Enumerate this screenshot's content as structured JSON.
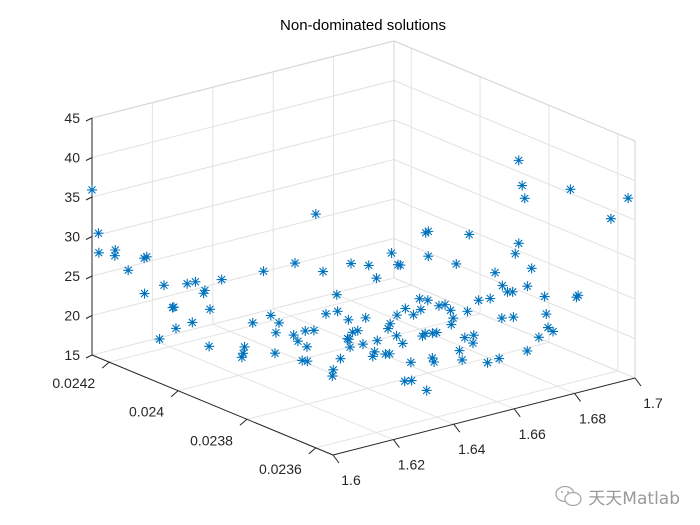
{
  "chart_data": {
    "type": "scatter3d",
    "title": "Non-dominated solutions",
    "xlabel": "",
    "ylabel": "",
    "zlabel": "",
    "xlim": [
      1.6,
      1.7
    ],
    "ylim": [
      0.02355,
      0.02425
    ],
    "zlim": [
      15,
      45
    ],
    "xticks": [
      "1.6",
      "1.62",
      "1.64",
      "1.66",
      "1.68",
      "1.7"
    ],
    "yticks": [
      "0.0236",
      "0.0238",
      "0.024",
      "0.0242"
    ],
    "zticks": [
      "15",
      "20",
      "25",
      "30",
      "35",
      "40",
      "45"
    ],
    "grid": true,
    "marker": "*",
    "color": "#0072BD",
    "points": [
      [
        1.6,
        0.02425,
        35.9
      ],
      [
        1.601,
        0.02424,
        30.5
      ],
      [
        1.6,
        0.02423,
        28.3
      ],
      [
        1.602,
        0.0242,
        29.0
      ],
      [
        1.603,
        0.02421,
        28.0
      ],
      [
        1.604,
        0.02418,
        26.6
      ],
      [
        1.607,
        0.02416,
        28.2
      ],
      [
        1.609,
        0.02417,
        28.0
      ],
      [
        1.69,
        0.0238,
        39.0
      ],
      [
        1.69,
        0.02379,
        36.0
      ],
      [
        1.692,
        0.0238,
        34.0
      ],
      [
        1.698,
        0.02372,
        36.0
      ],
      [
        1.7,
        0.02357,
        37.4
      ],
      [
        1.7,
        0.02362,
        33.9
      ],
      [
        1.69,
        0.0238,
        28.5
      ],
      [
        1.69,
        0.02381,
        27.0
      ],
      [
        1.685,
        0.0239,
        28.3
      ],
      [
        1.682,
        0.024,
        27.0
      ],
      [
        1.684,
        0.02401,
        26.8
      ],
      [
        1.657,
        0.0241,
        30.0
      ],
      [
        1.665,
        0.02395,
        27.0
      ],
      [
        1.666,
        0.02394,
        25.6
      ],
      [
        1.622,
        0.024,
        18.4
      ],
      [
        1.605,
        0.02405,
        21.5
      ],
      [
        1.608,
        0.02398,
        20.2
      ],
      [
        1.61,
        0.0241,
        22.8
      ],
      [
        1.612,
        0.02392,
        19.5
      ],
      [
        1.614,
        0.02403,
        23.4
      ],
      [
        1.615,
        0.02385,
        21.0
      ],
      [
        1.617,
        0.02396,
        18.8
      ],
      [
        1.618,
        0.02408,
        24.5
      ],
      [
        1.62,
        0.0238,
        20.4
      ],
      [
        1.621,
        0.0239,
        22.1
      ],
      [
        1.623,
        0.02373,
        21.7
      ],
      [
        1.624,
        0.02385,
        19.2
      ],
      [
        1.625,
        0.02395,
        23.0
      ],
      [
        1.626,
        0.02378,
        18.3
      ],
      [
        1.627,
        0.02402,
        20.6
      ],
      [
        1.628,
        0.02368,
        22.4
      ],
      [
        1.629,
        0.02388,
        19.9
      ],
      [
        1.63,
        0.02397,
        21.2
      ],
      [
        1.631,
        0.02375,
        24.1
      ],
      [
        1.632,
        0.02383,
        17.6
      ],
      [
        1.633,
        0.02392,
        20.8
      ],
      [
        1.634,
        0.02364,
        19.4
      ],
      [
        1.635,
        0.0238,
        22.6
      ],
      [
        1.636,
        0.02398,
        18.9
      ],
      [
        1.637,
        0.02371,
        21.3
      ],
      [
        1.638,
        0.02387,
        23.7
      ],
      [
        1.639,
        0.02362,
        18.1
      ],
      [
        1.64,
        0.02378,
        20.0
      ],
      [
        1.641,
        0.02393,
        22.0
      ],
      [
        1.642,
        0.02369,
        17.8
      ],
      [
        1.643,
        0.02384,
        19.6
      ],
      [
        1.644,
        0.02375,
        24.8
      ],
      [
        1.645,
        0.0239,
        21.4
      ],
      [
        1.646,
        0.02366,
        20.3
      ],
      [
        1.647,
        0.02381,
        18.5
      ],
      [
        1.648,
        0.02396,
        23.2
      ],
      [
        1.649,
        0.02372,
        22.2
      ],
      [
        1.65,
        0.02386,
        19.0
      ],
      [
        1.651,
        0.02363,
        21.8
      ],
      [
        1.652,
        0.02378,
        17.5
      ],
      [
        1.653,
        0.02392,
        20.5
      ],
      [
        1.654,
        0.02368,
        23.9
      ],
      [
        1.655,
        0.02383,
        18.7
      ],
      [
        1.656,
        0.02374,
        21.6
      ],
      [
        1.657,
        0.02389,
        19.3
      ],
      [
        1.658,
        0.02365,
        22.7
      ],
      [
        1.659,
        0.0238,
        20.1
      ],
      [
        1.66,
        0.02395,
        24.3
      ],
      [
        1.661,
        0.02371,
        18.2
      ],
      [
        1.662,
        0.02386,
        21.1
      ],
      [
        1.663,
        0.02362,
        19.8
      ],
      [
        1.664,
        0.02377,
        23.1
      ],
      [
        1.665,
        0.02391,
        20.7
      ],
      [
        1.666,
        0.02368,
        17.9
      ],
      [
        1.667,
        0.02383,
        22.3
      ],
      [
        1.668,
        0.02374,
        19.1
      ],
      [
        1.669,
        0.02388,
        21.9
      ],
      [
        1.67,
        0.02364,
        24.0
      ],
      [
        1.671,
        0.02379,
        18.6
      ],
      [
        1.672,
        0.02393,
        20.9
      ],
      [
        1.673,
        0.0237,
        22.5
      ],
      [
        1.674,
        0.02385,
        19.7
      ],
      [
        1.675,
        0.02361,
        21.5
      ],
      [
        1.676,
        0.02376,
        23.6
      ],
      [
        1.677,
        0.0239,
        20.2
      ],
      [
        1.678,
        0.02367,
        18.4
      ],
      [
        1.679,
        0.02382,
        22.0
      ],
      [
        1.68,
        0.02373,
        24.6
      ],
      [
        1.681,
        0.02387,
        19.5
      ],
      [
        1.682,
        0.02363,
        21.2
      ],
      [
        1.684,
        0.02378,
        23.3
      ],
      [
        1.686,
        0.02368,
        20.4
      ],
      [
        1.688,
        0.02383,
        22.8
      ],
      [
        1.69,
        0.02372,
        21.0
      ],
      [
        1.692,
        0.02365,
        24.2
      ],
      [
        1.694,
        0.02376,
        22.1
      ],
      [
        1.696,
        0.02368,
        23.5
      ],
      [
        1.606,
        0.02415,
        24.0
      ],
      [
        1.609,
        0.02412,
        25.3
      ],
      [
        1.611,
        0.02407,
        26.2
      ],
      [
        1.613,
        0.02413,
        21.9
      ],
      [
        1.616,
        0.02409,
        25.6
      ],
      [
        1.619,
        0.02404,
        26.5
      ],
      [
        1.621,
        0.02411,
        23.3
      ],
      [
        1.603,
        0.02408,
        19.8
      ],
      [
        1.607,
        0.02402,
        22.6
      ],
      [
        1.634,
        0.02405,
        25.9
      ],
      [
        1.641,
        0.02402,
        26.8
      ],
      [
        1.648,
        0.024,
        25.4
      ],
      [
        1.655,
        0.02398,
        26.1
      ],
      [
        1.662,
        0.02399,
        25.0
      ],
      [
        1.669,
        0.02396,
        24.9
      ],
      [
        1.676,
        0.02394,
        25.7
      ],
      [
        1.683,
        0.02392,
        24.4
      ],
      [
        1.689,
        0.02386,
        23.8
      ],
      [
        1.692,
        0.02378,
        25.5
      ],
      [
        1.694,
        0.02381,
        22.5
      ],
      [
        1.626,
        0.02388,
        20.9
      ],
      [
        1.633,
        0.02379,
        21.1
      ],
      [
        1.639,
        0.02385,
        20.5
      ],
      [
        1.645,
        0.02376,
        21.9
      ],
      [
        1.652,
        0.02384,
        21.3
      ],
      [
        1.658,
        0.02377,
        20.8
      ],
      [
        1.644,
        0.02389,
        19.2
      ],
      [
        1.637,
        0.02393,
        20.3
      ],
      [
        1.65,
        0.0237,
        19.7
      ],
      [
        1.661,
        0.02383,
        22.4
      ]
    ]
  },
  "watermark": "天天Matlab"
}
